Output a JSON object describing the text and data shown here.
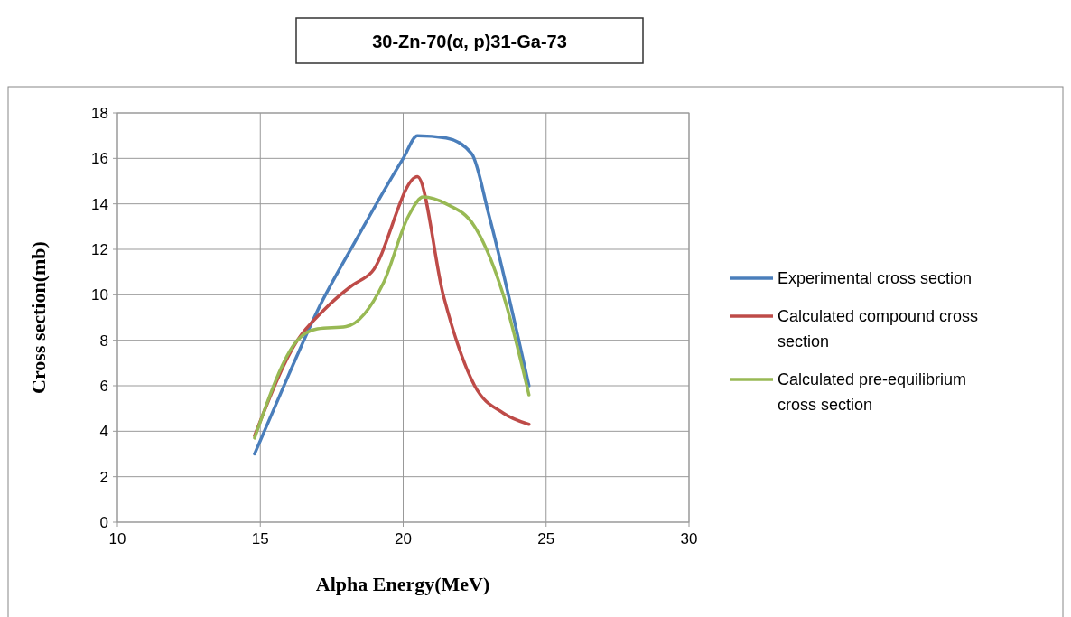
{
  "chart_data": {
    "type": "line",
    "title": "30-Zn-70(α, p)31-Ga-73",
    "xlabel": "Alpha Energy(MeV)",
    "ylabel": "Cross section(mb)",
    "xlim": [
      10,
      30
    ],
    "xticks": [
      10,
      15,
      20,
      25,
      30
    ],
    "ylim": [
      0,
      18
    ],
    "yticks": [
      0,
      2,
      4,
      6,
      8,
      10,
      12,
      14,
      16,
      18
    ],
    "grid": true,
    "legend": "right",
    "marker": "none",
    "series": [
      {
        "name": "Experimental cross section",
        "color": "#4a7ebb",
        "x": [
          14.8,
          16,
          17,
          18.3,
          20,
          20.5,
          21.5,
          22.4,
          23,
          24.4
        ],
        "values": [
          3,
          6.5,
          9.3,
          12.3,
          16,
          17,
          16.9,
          16.2,
          13.5,
          6
        ]
      },
      {
        "name": "Calculated compound cross section",
        "color": "#be4b48",
        "x": [
          14.8,
          16.3,
          17.2,
          18.2,
          18.9,
          20.5,
          21.4,
          22.5,
          23.5,
          24.4
        ],
        "values": [
          3.8,
          8,
          9.3,
          10.4,
          11,
          15.2,
          10,
          6,
          4.8,
          4.3
        ]
      },
      {
        "name": "Calculated pre-equilibrium cross section",
        "color": "#98b954",
        "x": [
          14.8,
          16.3,
          17,
          18,
          19.3,
          20.2,
          20.7,
          21.5,
          22.5,
          23.5,
          24.4
        ],
        "values": [
          3.7,
          8,
          8.5,
          8.6,
          10.5,
          13.5,
          14.3,
          14,
          13,
          10,
          5.6
        ]
      }
    ]
  }
}
